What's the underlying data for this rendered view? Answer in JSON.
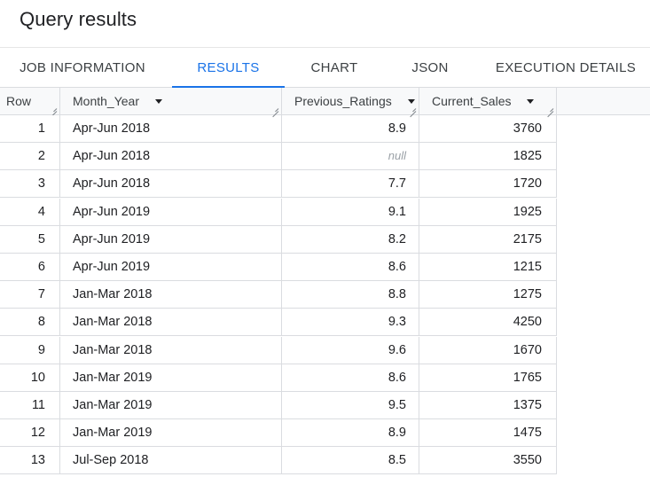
{
  "title": "Query results",
  "tabs": [
    {
      "label": "JOB INFORMATION"
    },
    {
      "label": "RESULTS"
    },
    {
      "label": "CHART"
    },
    {
      "label": "JSON"
    },
    {
      "label": "EXECUTION DETAILS"
    }
  ],
  "active_tab": "RESULTS",
  "columns": {
    "row": "Row",
    "month_year": "Month_Year",
    "previous_ratings": "Previous_Ratings",
    "current_sales": "Current_Sales"
  },
  "rows": [
    {
      "row": "1",
      "month_year": "Apr-Jun 2018",
      "previous_ratings": "8.9",
      "current_sales": "3760"
    },
    {
      "row": "2",
      "month_year": "Apr-Jun 2018",
      "previous_ratings": "null",
      "current_sales": "1825"
    },
    {
      "row": "3",
      "month_year": "Apr-Jun 2018",
      "previous_ratings": "7.7",
      "current_sales": "1720"
    },
    {
      "row": "4",
      "month_year": "Apr-Jun 2019",
      "previous_ratings": "9.1",
      "current_sales": "1925"
    },
    {
      "row": "5",
      "month_year": "Apr-Jun 2019",
      "previous_ratings": "8.2",
      "current_sales": "2175"
    },
    {
      "row": "6",
      "month_year": "Apr-Jun 2019",
      "previous_ratings": "8.6",
      "current_sales": "1215"
    },
    {
      "row": "7",
      "month_year": "Jan-Mar 2018",
      "previous_ratings": "8.8",
      "current_sales": "1275"
    },
    {
      "row": "8",
      "month_year": "Jan-Mar 2018",
      "previous_ratings": "9.3",
      "current_sales": "4250"
    },
    {
      "row": "9",
      "month_year": "Jan-Mar 2018",
      "previous_ratings": "9.6",
      "current_sales": "1670"
    },
    {
      "row": "10",
      "month_year": "Jan-Mar 2019",
      "previous_ratings": "8.6",
      "current_sales": "1765"
    },
    {
      "row": "11",
      "month_year": "Jan-Mar 2019",
      "previous_ratings": "9.5",
      "current_sales": "1375"
    },
    {
      "row": "12",
      "month_year": "Jan-Mar 2019",
      "previous_ratings": "8.9",
      "current_sales": "1475"
    },
    {
      "row": "13",
      "month_year": "Jul-Sep 2018",
      "previous_ratings": "8.5",
      "current_sales": "3550"
    }
  ],
  "colors": {
    "accent": "#1a73e8",
    "border": "#dadce0",
    "header_bg": "#f8f9fa",
    "null_text": "#9aa0a6"
  }
}
